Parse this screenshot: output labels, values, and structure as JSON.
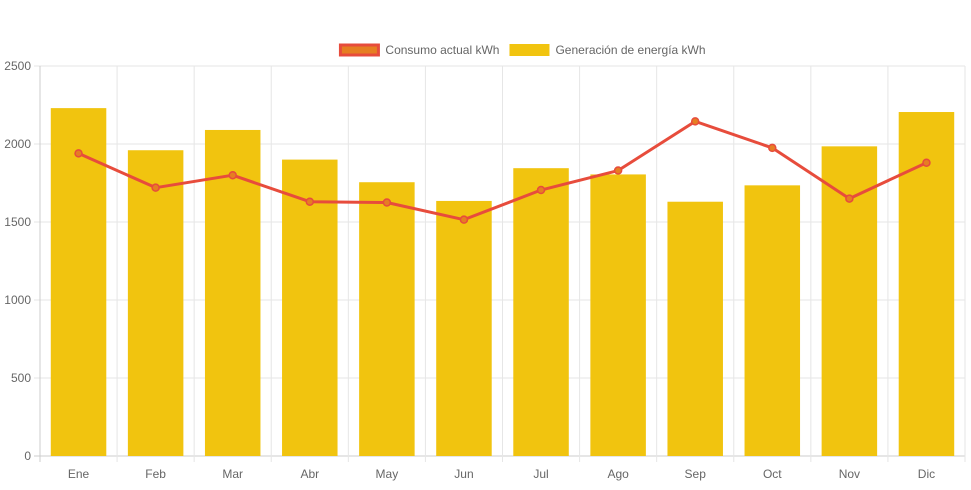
{
  "chart_data": {
    "type": "bar",
    "categories": [
      "Ene",
      "Feb",
      "Mar",
      "Abr",
      "May",
      "Jun",
      "Jul",
      "Ago",
      "Sep",
      "Oct",
      "Nov",
      "Dic"
    ],
    "series": [
      {
        "name": "Generación de energía kWh",
        "type": "bar",
        "color": "#f1c40f",
        "values": [
          2230,
          1960,
          2090,
          1900,
          1755,
          1635,
          1845,
          1805,
          1630,
          1735,
          1985,
          2205
        ]
      },
      {
        "name": "Consumo actual kWh",
        "type": "line",
        "color": "#e74c3c",
        "point_fill": "#e67e22",
        "values": [
          1940,
          1720,
          1800,
          1630,
          1625,
          1515,
          1705,
          1830,
          2145,
          1975,
          1650,
          1880
        ]
      }
    ],
    "legend_order": [
      1,
      0
    ],
    "legend_position": "top",
    "yticks": [
      0,
      500,
      1000,
      1500,
      2000,
      2500
    ],
    "ylim": [
      0,
      2500
    ],
    "grid": true,
    "title": "",
    "xlabel": "",
    "ylabel": ""
  }
}
